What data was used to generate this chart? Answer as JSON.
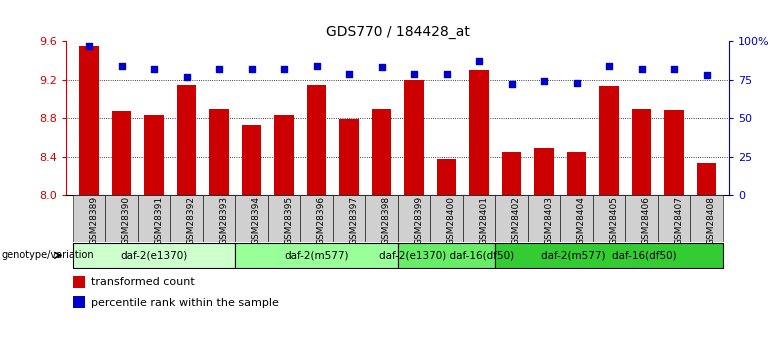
{
  "title": "GDS770 / 184428_at",
  "categories": [
    "GSM28389",
    "GSM28390",
    "GSM28391",
    "GSM28392",
    "GSM28393",
    "GSM28394",
    "GSM28395",
    "GSM28396",
    "GSM28397",
    "GSM28398",
    "GSM28399",
    "GSM28400",
    "GSM28401",
    "GSM28402",
    "GSM28403",
    "GSM28404",
    "GSM28405",
    "GSM28406",
    "GSM28407",
    "GSM28408"
  ],
  "bar_values": [
    9.55,
    8.87,
    8.83,
    9.15,
    8.9,
    8.73,
    8.83,
    9.15,
    8.79,
    8.9,
    9.2,
    8.37,
    9.3,
    8.45,
    8.49,
    8.45,
    9.13,
    8.9,
    8.88,
    8.33
  ],
  "dot_values": [
    97,
    84,
    82,
    77,
    82,
    82,
    82,
    84,
    79,
    83,
    79,
    79,
    87,
    72,
    74,
    73,
    84,
    82,
    82,
    78
  ],
  "bar_color": "#cc0000",
  "dot_color": "#0000cc",
  "ylim_left": [
    8.0,
    9.6
  ],
  "ylim_right": [
    0,
    100
  ],
  "yticks_left": [
    8.0,
    8.4,
    8.8,
    9.2,
    9.6
  ],
  "yticks_right": [
    0,
    25,
    50,
    75,
    100
  ],
  "ytick_labels_right": [
    "0",
    "25",
    "50",
    "75",
    "100%"
  ],
  "grid_values": [
    8.4,
    8.8,
    9.2
  ],
  "groups": [
    {
      "label": "daf-2(e1370)",
      "start": 0,
      "end": 4,
      "color": "#ccffcc"
    },
    {
      "label": "daf-2(m577)",
      "start": 5,
      "end": 9,
      "color": "#99ff99"
    },
    {
      "label": "daf-2(e1370) daf-16(df50)",
      "start": 10,
      "end": 12,
      "color": "#66ee66"
    },
    {
      "label": "daf-2(m577)  daf-16(df50)",
      "start": 13,
      "end": 19,
      "color": "#33cc33"
    }
  ],
  "legend_items": [
    {
      "label": "transformed count",
      "color": "#cc0000"
    },
    {
      "label": "percentile rank within the sample",
      "color": "#0000cc"
    }
  ],
  "genotype_label": "genotype/variation",
  "background_color": "#ffffff"
}
